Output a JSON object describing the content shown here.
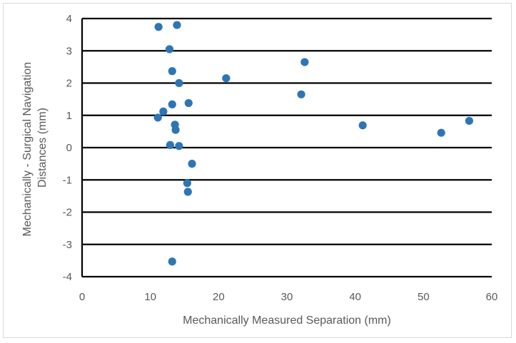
{
  "chart_data": {
    "type": "scatter",
    "title": "",
    "xlabel": "Mechanically Measured Separation (mm)",
    "ylabel_lines": [
      "Mechanically - Surgical Navigation",
      "Distances (mm)"
    ],
    "xlim": [
      0,
      60
    ],
    "ylim": [
      -4,
      4
    ],
    "x_ticks": [
      "0",
      "10",
      "20",
      "30",
      "40",
      "50",
      "60"
    ],
    "y_ticks": [
      "4",
      "3",
      "2",
      "1",
      "0",
      "-1",
      "-2",
      "-3",
      "-4"
    ],
    "grid": "horizontal major gridlines",
    "legend": "none",
    "marker_color": "#2e75b6",
    "gridline_color": "#000000",
    "series": [
      {
        "points": [
          {
            "x": 11.2,
            "y": 3.74
          },
          {
            "x": 13.9,
            "y": 3.8
          },
          {
            "x": 12.8,
            "y": 3.05
          },
          {
            "x": 13.2,
            "y": 2.37
          },
          {
            "x": 14.2,
            "y": 2.0
          },
          {
            "x": 21.1,
            "y": 2.15
          },
          {
            "x": 32.6,
            "y": 2.65
          },
          {
            "x": 32.1,
            "y": 1.65
          },
          {
            "x": 15.6,
            "y": 1.38
          },
          {
            "x": 13.2,
            "y": 1.34
          },
          {
            "x": 11.9,
            "y": 1.12
          },
          {
            "x": 11.1,
            "y": 0.93
          },
          {
            "x": 13.6,
            "y": 0.71
          },
          {
            "x": 13.7,
            "y": 0.55
          },
          {
            "x": 41.1,
            "y": 0.69
          },
          {
            "x": 52.6,
            "y": 0.46
          },
          {
            "x": 56.7,
            "y": 0.83
          },
          {
            "x": 12.9,
            "y": 0.08
          },
          {
            "x": 14.2,
            "y": 0.05
          },
          {
            "x": 16.1,
            "y": -0.5
          },
          {
            "x": 15.4,
            "y": -1.1
          },
          {
            "x": 15.5,
            "y": -1.37
          },
          {
            "x": 13.2,
            "y": -3.53
          }
        ]
      }
    ]
  }
}
